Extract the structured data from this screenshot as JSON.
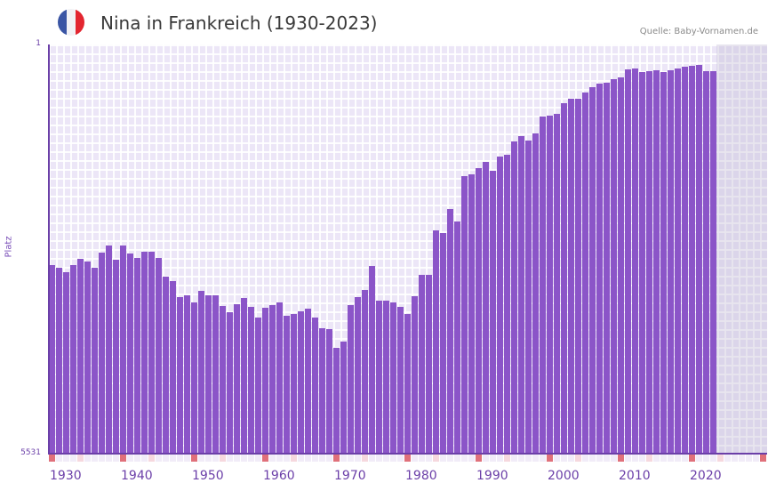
{
  "header": {
    "title": "Nina in Frankreich (1930-2023)",
    "source": "Quelle: Baby-Vornamen.de",
    "flag_colors": [
      "#3a55a4",
      "#f2f2f5",
      "#e32630"
    ]
  },
  "axis": {
    "y_top_label": "1",
    "y_bottom_label": "5531",
    "y_title": "Platz",
    "x_ticks": [
      "1930",
      "1940",
      "1950",
      "1960",
      "1970",
      "1980",
      "1990",
      "2000",
      "2010",
      "2020"
    ]
  },
  "colors": {
    "bar": "#8b55c8",
    "axis": "#6b3fa8",
    "decade_marker": "#e0707a",
    "mid_marker": "#f6d8de"
  },
  "chart_data": {
    "type": "bar",
    "title": "Nina in Frankreich (1930-2023)",
    "xlabel": "",
    "ylabel": "Platz",
    "ylim": [
      5531,
      1
    ],
    "y_inverted": true,
    "x_range": [
      1930,
      2030
    ],
    "grid": true,
    "categories": [
      1930,
      1931,
      1932,
      1933,
      1934,
      1935,
      1936,
      1937,
      1938,
      1939,
      1940,
      1941,
      1942,
      1943,
      1944,
      1945,
      1946,
      1947,
      1948,
      1949,
      1950,
      1951,
      1952,
      1953,
      1954,
      1955,
      1956,
      1957,
      1958,
      1959,
      1960,
      1961,
      1962,
      1963,
      1964,
      1965,
      1966,
      1967,
      1968,
      1969,
      1970,
      1971,
      1972,
      1973,
      1974,
      1975,
      1976,
      1977,
      1978,
      1979,
      1980,
      1981,
      1982,
      1983,
      1984,
      1985,
      1986,
      1987,
      1988,
      1989,
      1990,
      1991,
      1992,
      1993,
      1994,
      1995,
      1996,
      1997,
      1998,
      1999,
      2000,
      2001,
      2002,
      2003,
      2004,
      2005,
      2006,
      2007,
      2008,
      2009,
      2010,
      2011,
      2012,
      2013,
      2014,
      2015,
      2016,
      2017,
      2018,
      2019,
      2020,
      2021,
      2022,
      2023
    ],
    "values": [
      2983,
      3019,
      3079,
      2983,
      2899,
      2935,
      3019,
      2815,
      2719,
      2911,
      2719,
      2827,
      2887,
      2803,
      2803,
      2887,
      3139,
      3199,
      3415,
      3391,
      3488,
      3331,
      3391,
      3391,
      3536,
      3620,
      3512,
      3428,
      3548,
      3692,
      3560,
      3524,
      3488,
      3668,
      3644,
      3608,
      3572,
      3692,
      3837,
      3849,
      4101,
      4017,
      3524,
      3415,
      3319,
      2995,
      3464,
      3464,
      3488,
      3548,
      3644,
      3403,
      3115,
      3115,
      2514,
      2550,
      2226,
      2394,
      1781,
      1757,
      1673,
      1589,
      1709,
      1516,
      1492,
      1312,
      1240,
      1300,
      1203,
      975,
      963,
      939,
      795,
      735,
      735,
      651,
      579,
      531,
      519,
      471,
      447,
      339,
      327,
      375,
      363,
      351,
      375,
      351,
      327,
      303,
      291,
      279,
      363,
      363
    ]
  }
}
